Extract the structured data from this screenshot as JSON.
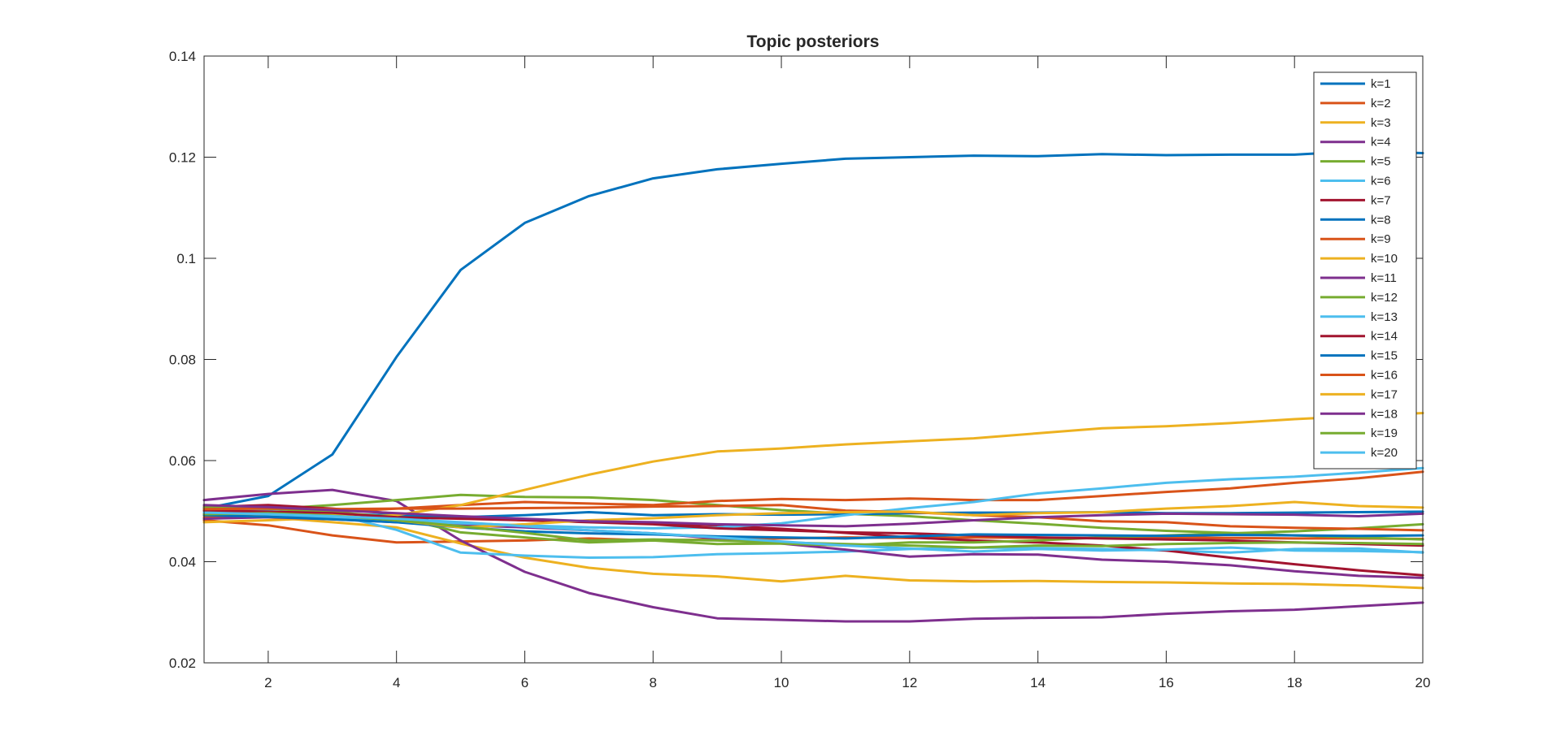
{
  "chart_data": {
    "type": "line",
    "title": "Topic posteriors",
    "xlabel": "",
    "ylabel": "",
    "xlim": [
      1,
      20
    ],
    "ylim": [
      0.02,
      0.14
    ],
    "xticks": [
      2,
      4,
      6,
      8,
      10,
      12,
      14,
      16,
      18,
      20
    ],
    "yticks": [
      0.02,
      0.04,
      0.06,
      0.08,
      0.1,
      0.12,
      0.14
    ],
    "ytick_labels": [
      "0.02",
      "0.04",
      "0.06",
      "0.08",
      "0.1",
      "0.12",
      "0.14"
    ],
    "grid": false,
    "legend_position": "top-right",
    "x": [
      1,
      2,
      3,
      4,
      5,
      6,
      7,
      8,
      9,
      10,
      11,
      12,
      13,
      14,
      15,
      16,
      17,
      18,
      19,
      20
    ],
    "series": [
      {
        "name": "k=1",
        "color": "#0072BD",
        "values": [
          0.0505,
          0.053,
          0.0612,
          0.0805,
          0.0977,
          0.107,
          0.1123,
          0.1158,
          0.1176,
          0.1187,
          0.1197,
          0.12,
          0.1203,
          0.1202,
          0.1206,
          0.1204,
          0.1205,
          0.1205,
          0.1212,
          0.1208
        ]
      },
      {
        "name": "k=2",
        "color": "#D95319",
        "values": [
          0.0482,
          0.0472,
          0.0452,
          0.0438,
          0.044,
          0.0442,
          0.0446,
          0.0442,
          0.0444,
          0.0446,
          0.0448,
          0.0447,
          0.0448,
          0.0447,
          0.0447,
          0.0448,
          0.0447,
          0.0446,
          0.0446,
          0.0445
        ]
      },
      {
        "name": "k=3",
        "color": "#EDB120",
        "values": [
          0.0492,
          0.0488,
          0.0478,
          0.0468,
          0.0436,
          0.0408,
          0.0388,
          0.0376,
          0.0371,
          0.0361,
          0.0372,
          0.0363,
          0.0361,
          0.0362,
          0.036,
          0.0359,
          0.0357,
          0.0356,
          0.0353,
          0.0348
        ]
      },
      {
        "name": "k=4",
        "color": "#7E2F8E",
        "values": [
          0.0522,
          0.0534,
          0.0542,
          0.052,
          0.0442,
          0.038,
          0.0338,
          0.031,
          0.0288,
          0.0285,
          0.0282,
          0.0282,
          0.0287,
          0.0289,
          0.029,
          0.0297,
          0.0302,
          0.0305,
          0.0312,
          0.0319
        ]
      },
      {
        "name": "k=5",
        "color": "#77AC30",
        "values": [
          0.0498,
          0.0504,
          0.0512,
          0.0522,
          0.0532,
          0.0528,
          0.0527,
          0.0522,
          0.0512,
          0.0502,
          0.0495,
          0.049,
          0.0482,
          0.0475,
          0.0467,
          0.0461,
          0.0457,
          0.0452,
          0.0448,
          0.0444
        ]
      },
      {
        "name": "k=6",
        "color": "#4DBEEE",
        "values": [
          0.0502,
          0.05,
          0.0494,
          0.0463,
          0.0418,
          0.0412,
          0.0408,
          0.0409,
          0.0415,
          0.0417,
          0.042,
          0.0425,
          0.0428,
          0.0427,
          0.0425,
          0.0422,
          0.0418,
          0.0425,
          0.0426,
          0.0418
        ]
      },
      {
        "name": "k=7",
        "color": "#A2142F",
        "values": [
          0.0508,
          0.0512,
          0.0505,
          0.0495,
          0.0488,
          0.0482,
          0.048,
          0.0476,
          0.0472,
          0.0465,
          0.0457,
          0.0448,
          0.0442,
          0.0438,
          0.0432,
          0.0422,
          0.0408,
          0.0395,
          0.0383,
          0.0373
        ]
      },
      {
        "name": "k=8",
        "color": "#0072BD",
        "values": [
          0.0495,
          0.0496,
          0.0494,
          0.0492,
          0.0488,
          0.0492,
          0.0498,
          0.0492,
          0.0494,
          0.0493,
          0.0494,
          0.0496,
          0.0497,
          0.0497,
          0.0498,
          0.0496,
          0.0496,
          0.0497,
          0.0498,
          0.0499
        ]
      },
      {
        "name": "k=9",
        "color": "#D95319",
        "values": [
          0.0488,
          0.0492,
          0.0498,
          0.0505,
          0.0512,
          0.0518,
          0.0515,
          0.0512,
          0.052,
          0.0524,
          0.0522,
          0.0525,
          0.0522,
          0.0522,
          0.053,
          0.0538,
          0.0545,
          0.0556,
          0.0565,
          0.0578
        ]
      },
      {
        "name": "k=10",
        "color": "#EDB120",
        "values": [
          0.0478,
          0.0482,
          0.0487,
          0.0492,
          0.0512,
          0.0542,
          0.0572,
          0.0598,
          0.0618,
          0.0624,
          0.0632,
          0.0638,
          0.0644,
          0.0654,
          0.0664,
          0.0668,
          0.0674,
          0.0682,
          0.0688,
          0.0694
        ]
      },
      {
        "name": "k=11",
        "color": "#7E2F8E",
        "values": [
          0.0485,
          0.0488,
          0.0484,
          0.0478,
          0.0472,
          0.0468,
          0.0462,
          0.0456,
          0.0446,
          0.0436,
          0.0424,
          0.041,
          0.0415,
          0.0414,
          0.0404,
          0.04,
          0.0393,
          0.0381,
          0.0372,
          0.0368
        ]
      },
      {
        "name": "k=12",
        "color": "#77AC30",
        "values": [
          0.0507,
          0.0505,
          0.0498,
          0.0488,
          0.0458,
          0.0448,
          0.0438,
          0.0442,
          0.0435,
          0.0436,
          0.0432,
          0.0438,
          0.0438,
          0.0442,
          0.0448,
          0.0452,
          0.0456,
          0.046,
          0.0466,
          0.0474
        ]
      },
      {
        "name": "k=13",
        "color": "#4DBEEE",
        "values": [
          0.0498,
          0.0493,
          0.0488,
          0.0482,
          0.0476,
          0.0472,
          0.0468,
          0.0466,
          0.0468,
          0.0476,
          0.0492,
          0.0506,
          0.0518,
          0.0535,
          0.0545,
          0.0556,
          0.0563,
          0.0568,
          0.0576,
          0.0585
        ]
      },
      {
        "name": "k=14",
        "color": "#A2142F",
        "values": [
          0.0501,
          0.0499,
          0.0496,
          0.0488,
          0.0485,
          0.0482,
          0.0478,
          0.0474,
          0.0466,
          0.0462,
          0.0458,
          0.0456,
          0.0452,
          0.0448,
          0.0446,
          0.0444,
          0.0442,
          0.0438,
          0.0435,
          0.0432
        ]
      },
      {
        "name": "k=15",
        "color": "#0072BD",
        "values": [
          0.0492,
          0.0489,
          0.0484,
          0.0478,
          0.0468,
          0.046,
          0.0456,
          0.0454,
          0.045,
          0.0448,
          0.0446,
          0.045,
          0.0454,
          0.0453,
          0.0452,
          0.0451,
          0.0453,
          0.0452,
          0.0451,
          0.0452
        ]
      },
      {
        "name": "k=16",
        "color": "#D95319",
        "values": [
          0.0504,
          0.0505,
          0.0504,
          0.0505,
          0.0505,
          0.0506,
          0.0507,
          0.0509,
          0.051,
          0.0512,
          0.0501,
          0.0498,
          0.0492,
          0.0488,
          0.048,
          0.0478,
          0.047,
          0.0467,
          0.0465,
          0.0462
        ]
      },
      {
        "name": "k=17",
        "color": "#EDB120",
        "values": [
          0.0496,
          0.0494,
          0.0492,
          0.0482,
          0.0468,
          0.0474,
          0.0482,
          0.0486,
          0.0492,
          0.0496,
          0.0498,
          0.0499,
          0.0492,
          0.0496,
          0.0498,
          0.0505,
          0.051,
          0.0518,
          0.051,
          0.0507
        ]
      },
      {
        "name": "k=18",
        "color": "#7E2F8E",
        "values": [
          0.0512,
          0.0508,
          0.0502,
          0.0496,
          0.049,
          0.0485,
          0.048,
          0.0478,
          0.0474,
          0.0472,
          0.047,
          0.0475,
          0.0482,
          0.0488,
          0.0492,
          0.0495,
          0.0494,
          0.0493,
          0.049,
          0.0495
        ]
      },
      {
        "name": "k=19",
        "color": "#77AC30",
        "values": [
          0.0494,
          0.0496,
          0.0491,
          0.0482,
          0.047,
          0.0457,
          0.0442,
          0.0444,
          0.0442,
          0.0438,
          0.0435,
          0.0432,
          0.0428,
          0.0432,
          0.0431,
          0.0435,
          0.0437,
          0.0438,
          0.0437,
          0.0435
        ]
      },
      {
        "name": "k=20",
        "color": "#4DBEEE",
        "values": [
          0.0497,
          0.0494,
          0.049,
          0.0485,
          0.0478,
          0.047,
          0.0462,
          0.0456,
          0.0448,
          0.044,
          0.0432,
          0.0426,
          0.042,
          0.0425,
          0.0422,
          0.0424,
          0.0428,
          0.0422,
          0.0421,
          0.0419
        ]
      }
    ]
  }
}
